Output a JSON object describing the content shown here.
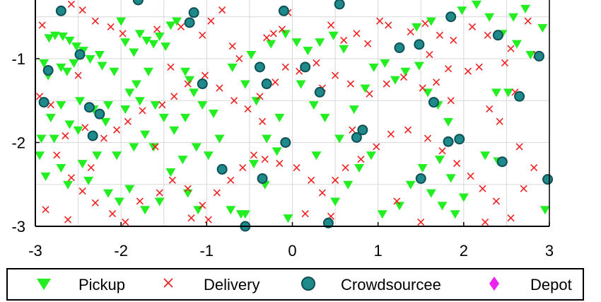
{
  "chart_data": {
    "type": "scatter",
    "title": "",
    "xlabel": "",
    "ylabel": "",
    "xlim": [
      -3,
      3
    ],
    "ylim": [
      -3,
      -0.3
    ],
    "x_ticks": [
      -3,
      -2,
      -1,
      0,
      1,
      2,
      3
    ],
    "y_ticks": [
      -1,
      -2,
      -3
    ],
    "grid": true,
    "legend_position": "bottom",
    "series": [
      {
        "name": "Pickup",
        "marker": "triangle-down",
        "color": "#22ee22",
        "points": [
          [
            -2.84,
            -0.75
          ],
          [
            -2.77,
            -0.72
          ],
          [
            -2.68,
            -0.73
          ],
          [
            -2.6,
            -0.78
          ],
          [
            -2.52,
            -0.85
          ],
          [
            -2.44,
            -0.9
          ],
          [
            -2.36,
            -1.0
          ],
          [
            -2.25,
            -0.95
          ],
          [
            -2.9,
            -1.05
          ],
          [
            -2.85,
            -1.2
          ],
          [
            -2.7,
            -1.1
          ],
          [
            -2.63,
            -1.15
          ],
          [
            -2.55,
            -1.05
          ],
          [
            -2.22,
            -1.08
          ],
          [
            -2.08,
            -1.15
          ],
          [
            -2.0,
            -0.55
          ],
          [
            -1.95,
            -0.8
          ],
          [
            -1.85,
            -0.92
          ],
          [
            -1.78,
            -0.7
          ],
          [
            -1.7,
            -0.78
          ],
          [
            -1.62,
            -0.82
          ],
          [
            -1.55,
            -0.73
          ],
          [
            -1.48,
            -0.85
          ],
          [
            -1.42,
            -0.6
          ],
          [
            -1.35,
            -0.55
          ],
          [
            -1.25,
            -1.15
          ],
          [
            -1.2,
            -1.25
          ],
          [
            -1.68,
            -1.15
          ],
          [
            -1.82,
            -1.3
          ],
          [
            -1.9,
            -1.4
          ],
          [
            -2.15,
            -1.55
          ],
          [
            -2.48,
            -1.5
          ],
          [
            -2.7,
            -1.55
          ],
          [
            -2.82,
            -1.7
          ],
          [
            -2.93,
            -1.95
          ],
          [
            -2.78,
            -1.95
          ],
          [
            -2.6,
            -1.78
          ],
          [
            -2.5,
            -1.85
          ],
          [
            -2.32,
            -1.6
          ],
          [
            -2.18,
            -1.75
          ],
          [
            -1.95,
            -1.6
          ],
          [
            -1.78,
            -1.5
          ],
          [
            -1.6,
            -1.55
          ],
          [
            -1.5,
            -1.7
          ],
          [
            -1.38,
            -1.85
          ],
          [
            -1.25,
            -1.7
          ],
          [
            -1.15,
            -1.4
          ],
          [
            -1.05,
            -1.55
          ],
          [
            -0.92,
            -1.65
          ],
          [
            -0.85,
            -1.95
          ],
          [
            -1.72,
            -1.9
          ],
          [
            -1.85,
            -2.05
          ],
          [
            -2.05,
            -2.15
          ],
          [
            -2.28,
            -2.15
          ],
          [
            -2.45,
            -2.25
          ],
          [
            -2.7,
            -2.3
          ],
          [
            -2.88,
            -2.4
          ],
          [
            -2.95,
            -2.15
          ],
          [
            -2.62,
            -2.5
          ],
          [
            -2.38,
            -2.45
          ],
          [
            -2.15,
            -2.6
          ],
          [
            -2.02,
            -2.7
          ],
          [
            -1.9,
            -2.55
          ],
          [
            -1.72,
            -2.8
          ],
          [
            -1.55,
            -2.7
          ],
          [
            -1.42,
            -2.35
          ],
          [
            -1.28,
            -2.2
          ],
          [
            -1.12,
            -2.05
          ],
          [
            -0.98,
            -2.15
          ],
          [
            -1.22,
            -2.6
          ],
          [
            -1.1,
            -2.8
          ],
          [
            -0.72,
            -2.8
          ],
          [
            -0.55,
            -2.85
          ],
          [
            -0.32,
            -2.5
          ],
          [
            -0.45,
            -2.25
          ],
          [
            -0.18,
            -2.1
          ],
          [
            -0.3,
            -1.95
          ],
          [
            -0.15,
            -1.7
          ],
          [
            -0.42,
            -1.5
          ],
          [
            -0.55,
            -1.3
          ],
          [
            -0.7,
            -1.1
          ],
          [
            -0.48,
            -0.95
          ],
          [
            -0.25,
            -0.82
          ],
          [
            -0.08,
            -0.7
          ],
          [
            0.05,
            -0.8
          ],
          [
            0.18,
            -0.9
          ],
          [
            0.32,
            -0.8
          ],
          [
            0.48,
            -0.72
          ],
          [
            0.6,
            -0.88
          ],
          [
            0.1,
            -1.3
          ],
          [
            0.25,
            -1.55
          ],
          [
            0.38,
            -1.7
          ],
          [
            0.55,
            -1.95
          ],
          [
            0.72,
            -1.6
          ],
          [
            0.85,
            -1.35
          ],
          [
            0.95,
            -1.1
          ],
          [
            1.08,
            -1.05
          ],
          [
            1.2,
            -1.25
          ],
          [
            1.32,
            -1.15
          ],
          [
            1.48,
            -1.08
          ],
          [
            1.58,
            -1.4
          ],
          [
            1.7,
            -1.55
          ],
          [
            1.82,
            -1.75
          ],
          [
            0.92,
            -2.15
          ],
          [
            0.78,
            -2.3
          ],
          [
            0.65,
            -2.5
          ],
          [
            0.5,
            -2.7
          ],
          [
            1.05,
            -2.85
          ],
          [
            1.25,
            -2.75
          ],
          [
            1.38,
            -2.5
          ],
          [
            1.52,
            -2.3
          ],
          [
            1.62,
            -2.6
          ],
          [
            1.75,
            -2.75
          ],
          [
            1.9,
            -2.85
          ],
          [
            2.0,
            -2.65
          ],
          [
            1.85,
            -2.42
          ],
          [
            1.72,
            -2.2
          ],
          [
            2.25,
            -2.15
          ],
          [
            2.38,
            -1.4
          ],
          [
            2.45,
            -0.7
          ],
          [
            2.62,
            -0.82
          ],
          [
            2.78,
            -0.95
          ],
          [
            2.92,
            -0.63
          ],
          [
            2.72,
            -0.4
          ],
          [
            2.58,
            -0.5
          ],
          [
            2.3,
            -0.5
          ],
          [
            2.15,
            -0.35
          ],
          [
            1.98,
            -0.42
          ],
          [
            1.62,
            -0.55
          ],
          [
            1.45,
            -0.62
          ],
          [
            2.95,
            -2.8
          ],
          [
            2.4,
            -2.22
          ],
          [
            2.52,
            -1.4
          ],
          [
            -1.62,
            -2.05
          ],
          [
            -0.05,
            -2.9
          ],
          [
            0.28,
            -2.15
          ],
          [
            -0.6,
            -2.85
          ]
        ]
      },
      {
        "name": "Delivery",
        "marker": "x",
        "color": "#ee2222",
        "points": [
          [
            -2.92,
            -0.6
          ],
          [
            -2.58,
            -0.35
          ],
          [
            -2.45,
            -0.42
          ],
          [
            -2.3,
            -0.55
          ],
          [
            -2.12,
            -0.62
          ],
          [
            -1.98,
            -0.7
          ],
          [
            -1.58,
            -0.65
          ],
          [
            -1.3,
            -0.62
          ],
          [
            -1.05,
            -0.72
          ],
          [
            -0.95,
            -0.55
          ],
          [
            -0.82,
            -0.42
          ],
          [
            -0.7,
            -0.85
          ],
          [
            -0.62,
            -1.0
          ],
          [
            -0.3,
            -0.75
          ],
          [
            -0.22,
            -0.7
          ],
          [
            -0.12,
            -0.65
          ],
          [
            0.45,
            -0.6
          ],
          [
            0.6,
            -0.78
          ],
          [
            0.75,
            -0.7
          ],
          [
            0.88,
            -0.82
          ],
          [
            1.02,
            -0.55
          ],
          [
            1.12,
            -0.6
          ],
          [
            1.38,
            -0.68
          ],
          [
            1.55,
            -0.58
          ],
          [
            1.72,
            -0.72
          ],
          [
            1.88,
            -0.78
          ],
          [
            2.1,
            -0.62
          ],
          [
            2.28,
            -0.72
          ],
          [
            2.55,
            -0.88
          ],
          [
            2.75,
            -0.55
          ],
          [
            2.85,
            -0.95
          ],
          [
            2.48,
            -1.05
          ],
          [
            2.18,
            -1.1
          ],
          [
            2.05,
            -1.15
          ],
          [
            1.82,
            -1.12
          ],
          [
            1.68,
            -1.28
          ],
          [
            1.52,
            -1.35
          ],
          [
            1.3,
            -1.22
          ],
          [
            1.1,
            -1.3
          ],
          [
            0.9,
            -1.42
          ],
          [
            0.68,
            -1.3
          ],
          [
            0.5,
            -1.2
          ],
          [
            0.28,
            -1.05
          ],
          [
            0.08,
            -1.15
          ],
          [
            -0.08,
            -1.1
          ],
          [
            -0.2,
            -1.28
          ],
          [
            -0.38,
            -1.45
          ],
          [
            -0.52,
            -1.6
          ],
          [
            -0.68,
            -1.5
          ],
          [
            -0.85,
            -1.35
          ],
          [
            -1.02,
            -1.2
          ],
          [
            -1.22,
            -1.3
          ],
          [
            -1.38,
            -1.45
          ],
          [
            -1.52,
            -1.55
          ],
          [
            -1.75,
            -1.62
          ],
          [
            -1.92,
            -1.75
          ],
          [
            -2.05,
            -1.85
          ],
          [
            -2.2,
            -1.95
          ],
          [
            -2.42,
            -1.82
          ],
          [
            -2.65,
            -1.92
          ],
          [
            -2.82,
            -1.55
          ],
          [
            -2.95,
            -1.45
          ],
          [
            -2.75,
            -2.15
          ],
          [
            -2.58,
            -2.42
          ],
          [
            -2.45,
            -2.58
          ],
          [
            -2.3,
            -2.72
          ],
          [
            -2.1,
            -2.85
          ],
          [
            -1.95,
            -2.95
          ],
          [
            -1.78,
            -2.7
          ],
          [
            -1.55,
            -2.6
          ],
          [
            -1.4,
            -2.45
          ],
          [
            -1.22,
            -2.55
          ],
          [
            -1.05,
            -2.75
          ],
          [
            -0.88,
            -2.6
          ],
          [
            -0.72,
            -2.45
          ],
          [
            -0.58,
            -2.3
          ],
          [
            -0.45,
            -2.15
          ],
          [
            -0.32,
            -2.2
          ],
          [
            -0.15,
            -2.25
          ],
          [
            0.05,
            -2.3
          ],
          [
            0.22,
            -2.45
          ],
          [
            0.35,
            -2.6
          ],
          [
            0.5,
            -2.45
          ],
          [
            0.62,
            -2.3
          ],
          [
            0.8,
            -2.2
          ],
          [
            0.98,
            -2.05
          ],
          [
            1.15,
            -1.9
          ],
          [
            1.35,
            -1.85
          ],
          [
            1.58,
            -1.95
          ],
          [
            1.75,
            -2.1
          ],
          [
            1.92,
            -2.25
          ],
          [
            2.08,
            -2.4
          ],
          [
            2.22,
            -2.55
          ],
          [
            2.38,
            -2.7
          ],
          [
            2.55,
            -2.9
          ],
          [
            2.7,
            -2.55
          ],
          [
            2.82,
            -2.3
          ],
          [
            2.65,
            -2.05
          ],
          [
            2.42,
            -1.75
          ],
          [
            2.3,
            -1.6
          ],
          [
            -2.88,
            -2.8
          ],
          [
            -2.62,
            -2.92
          ],
          [
            -2.35,
            -2.3
          ],
          [
            -1.18,
            -2.9
          ],
          [
            -0.98,
            -2.92
          ],
          [
            0.15,
            -2.85
          ],
          [
            0.45,
            -2.88
          ],
          [
            1.22,
            -2.7
          ],
          [
            1.5,
            -2.95
          ],
          [
            2.25,
            -2.95
          ],
          [
            -1.6,
            -2.05
          ],
          [
            -0.35,
            -1.75
          ],
          [
            0.7,
            -1.85
          ],
          [
            1.85,
            -1.5
          ],
          [
            2.6,
            -1.4
          ],
          [
            -2.5,
            -1.2
          ],
          [
            -1.42,
            -1.1
          ],
          [
            0.35,
            -1.35
          ],
          [
            1.6,
            -0.95
          ],
          [
            -0.05,
            -0.45
          ]
        ]
      },
      {
        "name": "Crowdsourcee",
        "marker": "circle",
        "color": "#1e8a8a",
        "points": [
          [
            -2.7,
            -0.43
          ],
          [
            -1.8,
            -0.27
          ],
          [
            -1.15,
            -0.45
          ],
          [
            -1.2,
            -0.57
          ],
          [
            -0.1,
            -0.43
          ],
          [
            0.55,
            -0.35
          ],
          [
            1.85,
            -0.5
          ],
          [
            2.4,
            -0.72
          ],
          [
            -2.48,
            -0.95
          ],
          [
            -2.85,
            -1.14
          ],
          [
            -1.05,
            -1.3
          ],
          [
            -0.38,
            -1.1
          ],
          [
            -0.3,
            -1.3
          ],
          [
            0.15,
            -1.1
          ],
          [
            0.32,
            -1.4
          ],
          [
            1.25,
            -0.87
          ],
          [
            1.48,
            -0.83
          ],
          [
            2.88,
            -0.97
          ],
          [
            -2.9,
            -1.52
          ],
          [
            -2.37,
            -1.58
          ],
          [
            -2.25,
            -1.66
          ],
          [
            -2.33,
            -1.92
          ],
          [
            1.65,
            -1.52
          ],
          [
            2.65,
            -1.45
          ],
          [
            0.75,
            -1.94
          ],
          [
            0.82,
            -1.85
          ],
          [
            1.82,
            -1.99
          ],
          [
            1.95,
            -1.96
          ],
          [
            -0.08,
            -2.0
          ],
          [
            -0.82,
            -2.32
          ],
          [
            -0.35,
            -2.43
          ],
          [
            1.5,
            -2.43
          ],
          [
            2.45,
            -2.23
          ],
          [
            2.98,
            -2.44
          ],
          [
            -0.55,
            -3.0
          ],
          [
            0.42,
            -2.96
          ]
        ]
      },
      {
        "name": "Depot",
        "marker": "diamond",
        "color": "#ee22ee",
        "points": []
      }
    ]
  },
  "legend": {
    "items": [
      {
        "label": "Pickup"
      },
      {
        "label": "Delivery"
      },
      {
        "label": "Crowdsourcee"
      },
      {
        "label": "Depot"
      }
    ]
  }
}
